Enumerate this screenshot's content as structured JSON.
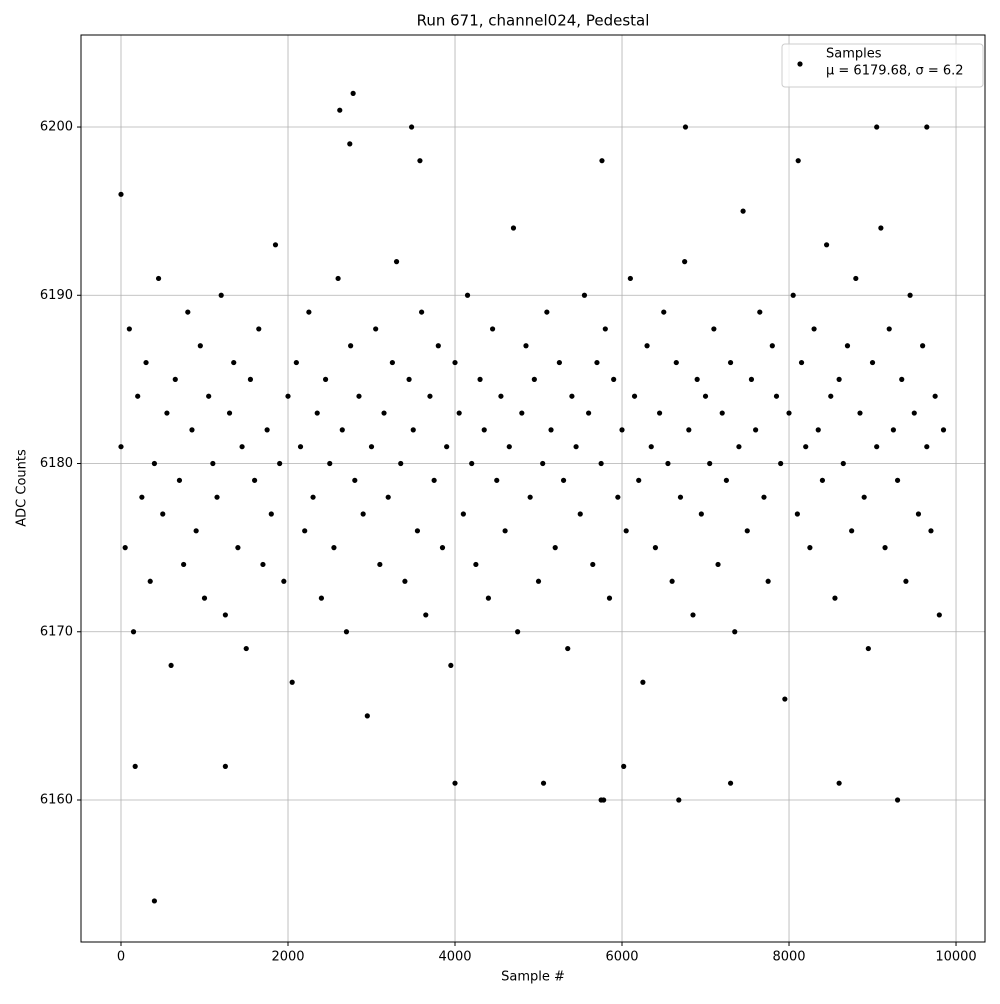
{
  "chart_data": {
    "type": "scatter",
    "title": "Run 671, channel024, Pedestal",
    "xlabel": "Sample #",
    "ylabel": "ADC Counts",
    "xlim": [
      -479,
      10347
    ],
    "ylim": [
      6151.56,
      6205.47
    ],
    "xticks": [
      0,
      2000,
      4000,
      6000,
      8000,
      10000
    ],
    "yticks": [
      6160,
      6170,
      6180,
      6190,
      6200
    ],
    "grid": true,
    "legend_position": "upper right",
    "series": [
      {
        "name": "Samples",
        "stats_label": "μ = 6179.68, σ = 6.2",
        "color": "#000000",
        "x": [
          0,
          50,
          100,
          150,
          200,
          250,
          300,
          350,
          400,
          450,
          500,
          550,
          600,
          650,
          700,
          750,
          800,
          850,
          900,
          950,
          1000,
          1050,
          1100,
          1150,
          1200,
          1250,
          1300,
          1350,
          1400,
          1450,
          1500,
          1550,
          1600,
          1650,
          1700,
          1750,
          1800,
          1850,
          1900,
          1950,
          2000,
          2050,
          2100,
          2150,
          2200,
          2250,
          2300,
          2350,
          2400,
          2450,
          2500,
          2550,
          2600,
          2650,
          2700,
          2750,
          2800,
          2850,
          2900,
          2950,
          3000,
          3050,
          3100,
          3150,
          3200,
          3250,
          3300,
          3350,
          3400,
          3450,
          3500,
          3550,
          3600,
          3650,
          3700,
          3750,
          3800,
          3850,
          3900,
          3950,
          4000,
          4050,
          4100,
          4150,
          4200,
          4250,
          4300,
          4350,
          4400,
          4450,
          4500,
          4550,
          4600,
          4650,
          4700,
          4750,
          4800,
          4850,
          4900,
          4950,
          5000,
          5050,
          5100,
          5150,
          5200,
          5250,
          5300,
          5350,
          5400,
          5450,
          5500,
          5550,
          5600,
          5650,
          5700,
          5750,
          5800,
          5850,
          5900,
          5950,
          6000,
          6050,
          6100,
          6150,
          6200,
          6250,
          6300,
          6350,
          6400,
          6450,
          6500,
          6550,
          6600,
          6650,
          6700,
          6750,
          6800,
          6850,
          6900,
          6950,
          7000,
          7050,
          7100,
          7150,
          7200,
          7250,
          7300,
          7350,
          7400,
          7450,
          7500,
          7550,
          7600,
          7650,
          7700,
          7750,
          7800,
          7850,
          7900,
          7950,
          8000,
          8050,
          8100,
          8150,
          8200,
          8250,
          8300,
          8350,
          8400,
          8450,
          8500,
          8550,
          8600,
          8650,
          8700,
          8750,
          8800,
          8850,
          8900,
          8950,
          9000,
          9050,
          9100,
          9150,
          9200,
          9250,
          9300,
          9350,
          9400,
          9450,
          9500,
          9550,
          9600,
          9650,
          9700,
          9750,
          9800,
          9850,
          400,
          2780,
          2620,
          3480,
          6760,
          9050,
          9650,
          0,
          4000,
          5060,
          5750,
          5780,
          6680,
          9300,
          8600,
          7300,
          1250,
          170,
          6020,
          2740,
          5760,
          8110,
          3580
        ],
        "values": [
          6181,
          6175,
          6188,
          6170,
          6184,
          6178,
          6186,
          6173,
          6180,
          6191,
          6177,
          6183,
          6168,
          6185,
          6179,
          6174,
          6189,
          6182,
          6176,
          6187,
          6172,
          6184,
          6180,
          6178,
          6190,
          6171,
          6183,
          6186,
          6175,
          6181,
          6169,
          6185,
          6179,
          6188,
          6174,
          6182,
          6177,
          6193,
          6180,
          6173,
          6184,
          6167,
          6186,
          6181,
          6176,
          6189,
          6178,
          6183,
          6172,
          6185,
          6180,
          6175,
          6191,
          6182,
          6170,
          6187,
          6179,
          6184,
          6177,
          6165,
          6181,
          6188,
          6174,
          6183,
          6178,
          6186,
          6192,
          6180,
          6173,
          6185,
          6182,
          6176,
          6189,
          6171,
          6184,
          6179,
          6187,
          6175,
          6181,
          6168,
          6186,
          6183,
          6177,
          6190,
          6180,
          6174,
          6185,
          6182,
          6172,
          6188,
          6179,
          6184,
          6176,
          6181,
          6194,
          6170,
          6183,
          6187,
          6178,
          6185,
          6173,
          6180,
          6189,
          6182,
          6175,
          6186,
          6179,
          6169,
          6184,
          6181,
          6177,
          6190,
          6183,
          6174,
          6186,
          6180,
          6188,
          6172,
          6185,
          6178,
          6182,
          6176,
          6191,
          6184,
          6179,
          6167,
          6187,
          6181,
          6175,
          6183,
          6189,
          6180,
          6173,
          6186,
          6178,
          6192,
          6182,
          6171,
          6185,
          6177,
          6184,
          6180,
          6188,
          6174,
          6183,
          6179,
          6186,
          6170,
          6181,
          6195,
          6176,
          6185,
          6182,
          6189,
          6178,
          6173,
          6187,
          6184,
          6180,
          6166,
          6183,
          6190,
          6177,
          6186,
          6181,
          6175,
          6188,
          6182,
          6179,
          6193,
          6184,
          6172,
          6185,
          6180,
          6187,
          6176,
          6191,
          6183,
          6178,
          6169,
          6186,
          6181,
          6194,
          6175,
          6188,
          6182,
          6179,
          6185,
          6173,
          6190,
          6183,
          6177,
          6187,
          6181,
          6176,
          6184,
          6171,
          6182,
          6154,
          6202,
          6201,
          6200,
          6200,
          6200,
          6200,
          6196,
          6161,
          6161,
          6160,
          6160,
          6160,
          6160,
          6161,
          6161,
          6162,
          6162,
          6162,
          6199,
          6198,
          6198,
          6198
        ]
      }
    ]
  }
}
